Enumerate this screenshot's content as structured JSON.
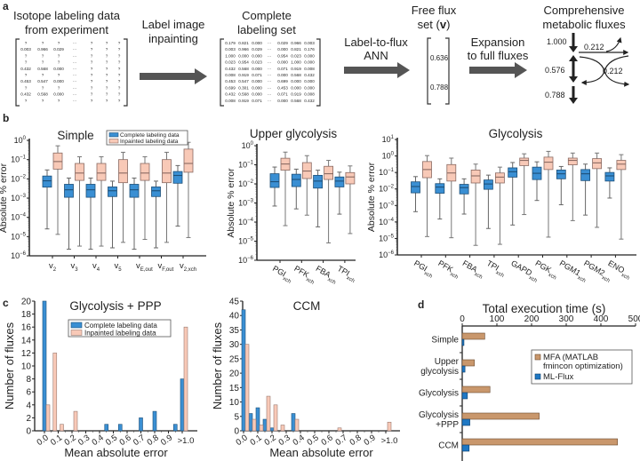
{
  "panel_labels": {
    "a": "a",
    "b": "b",
    "c": "c",
    "d": "d"
  },
  "panel_a": {
    "source_title": [
      "Isotope labeling data",
      "from experiment"
    ],
    "source_matrix": [
      [
        "?",
        "?",
        "?",
        "···",
        "?",
        "?",
        "?"
      ],
      [
        "0.003",
        "0.966",
        "0.029",
        "···",
        "?",
        "?",
        "?"
      ],
      [
        "?",
        "?",
        "?",
        "···",
        "?",
        "?",
        "?"
      ],
      [
        "?",
        "?",
        "?",
        "···",
        "?",
        "?",
        "?"
      ],
      [
        "0.432",
        "0.568",
        "0.000",
        "···",
        "?",
        "?",
        "?"
      ],
      [
        "?",
        "?",
        "?",
        "···",
        "?",
        "?",
        "?"
      ],
      [
        "0.453",
        "0.547",
        "0.000",
        "···",
        "?",
        "?",
        "?"
      ],
      [
        "?",
        "?",
        "?",
        "···",
        "?",
        "?",
        "?"
      ],
      [
        "0.432",
        "0.568",
        "0.000",
        "···",
        "?",
        "?",
        "?"
      ],
      [
        "?",
        "?",
        "?",
        "···",
        "?",
        "?",
        "?"
      ]
    ],
    "step1": [
      "Label image",
      "inpainting"
    ],
    "complete_title": [
      "Complete",
      "labeling set"
    ],
    "complete_matrix": [
      [
        "0.179",
        "0.821",
        "0.000",
        "···",
        "0.029",
        "0.966",
        "0.003"
      ],
      [
        "0.003",
        "0.966",
        "0.029",
        "···",
        "0.000",
        "0.821",
        "0.176"
      ],
      [
        "1.000",
        "0.000",
        "0.000",
        "···",
        "0.954",
        "0.023",
        "0.000"
      ],
      [
        "0.023",
        "0.954",
        "0.023",
        "···",
        "0.000",
        "1.000",
        "0.000"
      ],
      [
        "0.432",
        "0.568",
        "0.000",
        "···",
        "0.071",
        "0.919",
        "0.008"
      ],
      [
        "0.008",
        "0.919",
        "0.071",
        "···",
        "0.000",
        "0.568",
        "0.432"
      ],
      [
        "0.453",
        "0.547",
        "0.000",
        "···",
        "0.699",
        "0.000",
        "0.000"
      ],
      [
        "0.699",
        "0.301",
        "0.000",
        "···",
        "0.453",
        "0.000",
        "0.000"
      ],
      [
        "0.432",
        "0.568",
        "0.000",
        "···",
        "0.071",
        "0.919",
        "0.008"
      ],
      [
        "0.008",
        "0.919",
        "0.071",
        "···",
        "0.000",
        "0.568",
        "0.432"
      ]
    ],
    "step2": [
      "Label-to-flux",
      "ANN"
    ],
    "free_flux_title": {
      "line1": "Free flux",
      "prefix": "set (",
      "symbol": "v",
      "suffix": ")"
    },
    "free_flux_values": [
      "0.636",
      "0.788"
    ],
    "step3": [
      "Expansion",
      "to full fluxes"
    ],
    "full_title": [
      "Comprehensive",
      "metabolic fluxes"
    ],
    "full_flux_values": {
      "top": "1.000",
      "branch_out": "0.212",
      "middle": "0.576",
      "exchange": "0.212",
      "bottom": "0.788"
    },
    "arrow_color": "#555555"
  },
  "colors": {
    "complete": "#3a8fd3",
    "inpainted": "#f8c9b7",
    "mfa": "#c9976c",
    "mlflux": "#1f78c4"
  },
  "chart_data": [
    {
      "type": "box",
      "panel": "b",
      "title": "Simple",
      "ylabel": "Absolute % error",
      "yscale": "log",
      "ylim": [
        1e-06,
        1
      ],
      "yticks": [
        1e-06,
        1e-05,
        0.0001,
        0.001,
        0.01,
        0.1,
        1
      ],
      "legend": "top-right",
      "categories": [
        {
          "base": "v",
          "sub": "2"
        },
        {
          "base": "v",
          "sub": "3"
        },
        {
          "base": "v",
          "sub": "4"
        },
        {
          "base": "v",
          "sub": "5"
        },
        {
          "base": "v",
          "sub": "E,out"
        },
        {
          "base": "v",
          "sub": "F,out"
        },
        {
          "base": "v",
          "sub": "2,xch"
        }
      ],
      "box_format": [
        "whisker_low",
        "q1",
        "median",
        "q3",
        "whisker_high"
      ],
      "series": [
        {
          "name": "Complete labeling data",
          "boxes": [
            [
              2.5e-05,
              0.0037,
              0.0079,
              0.014,
              0.029
            ],
            [
              2.2e-06,
              0.0011,
              0.0027,
              0.0052,
              0.011
            ],
            [
              2.2e-06,
              0.0011,
              0.0027,
              0.0052,
              0.011
            ],
            [
              2.6e-06,
              0.0012,
              0.0024,
              0.0038,
              0.0076
            ],
            [
              2.2e-06,
              0.0011,
              0.0027,
              0.0052,
              0.011
            ],
            [
              2.6e-06,
              0.0012,
              0.0024,
              0.0038,
              0.0076
            ],
            [
              3.5e-05,
              0.0059,
              0.015,
              0.024,
              0.049
            ]
          ]
        },
        {
          "name": "Inpainted labeling data",
          "boxes": [
            [
              1.3e-05,
              0.032,
              0.079,
              0.22,
              0.52
            ],
            [
              3.2e-06,
              0.0083,
              0.02,
              0.063,
              0.14
            ],
            [
              3.2e-06,
              0.0083,
              0.02,
              0.063,
              0.14
            ],
            [
              5e-06,
              0.0063,
              0.02,
              0.1,
              0.24
            ],
            [
              7.1e-06,
              0.0083,
              0.02,
              0.063,
              0.14
            ],
            [
              5e-06,
              0.0063,
              0.02,
              0.1,
              0.24
            ],
            [
              8.9e-06,
              0.022,
              0.063,
              0.35,
              0.79
            ]
          ]
        }
      ]
    },
    {
      "type": "box",
      "panel": "b",
      "title": "Upper glycolysis",
      "ylabel": "Absolute % error",
      "yscale": "log",
      "ylim": [
        1e-06,
        1
      ],
      "yticks": [
        1e-06,
        1e-05,
        0.0001,
        0.001,
        0.01,
        0.1,
        1
      ],
      "categories": [
        {
          "base": "PGI",
          "sub": "xch"
        },
        {
          "base": "PFK",
          "sub": "xch"
        },
        {
          "base": "FBA",
          "sub": "xch"
        },
        {
          "base": "TPI",
          "sub": "xch"
        }
      ],
      "series": [
        {
          "name": "Complete labeling data",
          "boxes": [
            [
              0.00069,
              0.0065,
              0.013,
              0.034,
              0.076
            ],
            [
              0.00049,
              0.0072,
              0.017,
              0.032,
              0.059
            ],
            [
              5.6e-05,
              0.006,
              0.014,
              0.028,
              0.052
            ],
            [
              0.00026,
              0.0069,
              0.014,
              0.023,
              0.041
            ]
          ]
        },
        {
          "name": "Inpainted labeling data",
          "boxes": [
            [
              6.5e-05,
              0.052,
              0.11,
              0.22,
              0.46
            ],
            [
              0.00023,
              0.019,
              0.047,
              0.13,
              0.3
            ],
            [
              8.1e-06,
              0.017,
              0.034,
              0.083,
              0.17
            ],
            [
              2.5e-05,
              0.01,
              0.023,
              0.039,
              0.087
            ]
          ]
        }
      ]
    },
    {
      "type": "box",
      "panel": "b",
      "title": "Glycolysis",
      "ylabel": "Absolute % error",
      "yscale": "log",
      "ylim": [
        1e-06,
        10
      ],
      "yticks": [
        1e-06,
        1e-05,
        0.0001,
        0.001,
        0.01,
        0.1,
        1,
        10
      ],
      "categories": [
        {
          "base": "PGI",
          "sub": "xch"
        },
        {
          "base": "PFK",
          "sub": "xch"
        },
        {
          "base": "FBA",
          "sub": "xch"
        },
        {
          "base": "TPI",
          "sub": "xch"
        },
        {
          "base": "GAPD",
          "sub": "xch"
        },
        {
          "base": "PGK",
          "sub": "xch"
        },
        {
          "base": "PGM1",
          "sub": "xch"
        },
        {
          "base": "PGM2",
          "sub": "xch"
        },
        {
          "base": "ENO",
          "sub": "xch"
        }
      ],
      "series": [
        {
          "name": "Complete labeling data",
          "boxes": [
            [
              0.00042,
              0.0058,
              0.014,
              0.027,
              0.056
            ],
            [
              0.00015,
              0.0055,
              0.013,
              0.021,
              0.041
            ],
            [
              0.0003,
              0.005,
              0.012,
              0.019,
              0.041
            ],
            [
              4e-05,
              0.0095,
              0.02,
              0.035,
              0.069
            ],
            [
              6.5e-05,
              0.052,
              0.11,
              0.19,
              0.4
            ],
            [
              0.002,
              0.037,
              0.089,
              0.21,
              0.44
            ],
            [
              0.0011,
              0.041,
              0.083,
              0.14,
              0.23
            ],
            [
              0.00026,
              0.032,
              0.083,
              0.15,
              0.32
            ],
            [
              0.0028,
              0.03,
              0.062,
              0.1,
              0.19
            ]
          ]
        },
        {
          "name": "Inpainted labeling data",
          "boxes": [
            [
              1.3e-05,
              0.048,
              0.15,
              0.46,
              1.05
            ],
            [
              1.1e-05,
              0.03,
              0.093,
              0.3,
              0.74
            ],
            [
              3.8e-06,
              0.023,
              0.062,
              0.14,
              0.32
            ],
            [
              4.4e-06,
              0.023,
              0.052,
              0.093,
              0.21
            ],
            [
              0.00028,
              0.26,
              0.54,
              0.74,
              1.35
            ],
            [
              1.2e-05,
              0.15,
              0.42,
              0.85,
              1.9
            ],
            [
              0.00012,
              0.29,
              0.54,
              0.74,
              1.5
            ],
            [
              4.7e-05,
              0.17,
              0.38,
              0.69,
              1.5
            ],
            [
              9.1e-06,
              0.15,
              0.32,
              0.54,
              1.2
            ]
          ]
        }
      ]
    },
    {
      "type": "bar",
      "panel": "c",
      "title": "Glycolysis + PPP",
      "xlabel": "Mean absolute error",
      "ylabel": "Number of fluxes",
      "ylim": [
        0,
        20
      ],
      "yticks": [
        0,
        2,
        4,
        6,
        8,
        10,
        12,
        14,
        16,
        18,
        20
      ],
      "xtick_labels": [
        "0.0",
        "0.1",
        "0.2",
        "0.3",
        "0.4",
        "0.5",
        "0.6",
        "0.7",
        "0.8",
        "0.9",
        ">1.0"
      ],
      "bin_width": 0.05,
      "legend": "top-center",
      "series": [
        {
          "name": "Complete labeling data",
          "bars": [
            {
              "bin": 0.0,
              "count": 20
            },
            {
              "bin": 0.45,
              "count": 1
            },
            {
              "bin": 0.55,
              "count": 1
            },
            {
              "bin": 0.7,
              "count": 2
            },
            {
              "bin": 0.8,
              "count": 3
            },
            {
              "bin": 0.95,
              "count": 1
            },
            {
              "bin": ">1.0",
              "count": 8
            }
          ]
        },
        {
          "name": "Inpainted labeling data",
          "bars": [
            {
              "bin": 0.0,
              "count": 4
            },
            {
              "bin": 0.05,
              "count": 12
            },
            {
              "bin": 0.1,
              "count": 1
            },
            {
              "bin": 0.2,
              "count": 3
            },
            {
              "bin": ">1.0",
              "count": 16
            }
          ]
        }
      ]
    },
    {
      "type": "bar",
      "panel": "c",
      "title": "CCM",
      "xlabel": "Mean absolute error",
      "ylabel": "Number of fluxes",
      "ylim": [
        0,
        45
      ],
      "yticks": [
        0,
        5,
        10,
        15,
        20,
        25,
        30,
        35,
        40,
        45
      ],
      "xtick_labels": [
        "0.0",
        "0.1",
        "0.2",
        "0.3",
        "0.4",
        "0.5",
        "0.6",
        "0.7",
        "0.8",
        "0.9",
        ">1.0"
      ],
      "bin_width": 0.05,
      "series": [
        {
          "name": "Complete labeling data",
          "bars": [
            {
              "bin": 0.0,
              "count": 42
            },
            {
              "bin": 0.05,
              "count": 6
            },
            {
              "bin": 0.1,
              "count": 8
            },
            {
              "bin": 0.15,
              "count": 4
            },
            {
              "bin": 0.2,
              "count": 1
            },
            {
              "bin": 0.35,
              "count": 6
            }
          ]
        },
        {
          "name": "Inpainted labeling data",
          "bars": [
            {
              "bin": 0.0,
              "count": 30
            },
            {
              "bin": 0.05,
              "count": 4
            },
            {
              "bin": 0.1,
              "count": 2
            },
            {
              "bin": 0.15,
              "count": 12
            },
            {
              "bin": 0.2,
              "count": 9
            },
            {
              "bin": 0.25,
              "count": 2
            },
            {
              "bin": 0.35,
              "count": 4
            },
            {
              "bin": 0.65,
              "count": 1
            },
            {
              "bin": ">1.0",
              "count": 3
            }
          ]
        }
      ]
    },
    {
      "type": "bar",
      "orientation": "horizontal",
      "panel": "d",
      "title": "Total execution time (s)",
      "xlim": [
        0,
        500
      ],
      "xticks": [
        0,
        100,
        200,
        300,
        400,
        500
      ],
      "legend": "right",
      "categories": [
        [
          "Simple"
        ],
        [
          "Upper",
          "glycolysis"
        ],
        [
          "Glycolysis"
        ],
        [
          "Glycolysis",
          "+PPP"
        ],
        [
          "CCM"
        ]
      ],
      "series": [
        {
          "name": [
            "MFA (MATLAB",
            "fmincon optimization)"
          ],
          "values": [
            65,
            35,
            80,
            222,
            448
          ]
        },
        {
          "name": [
            "ML-Flux"
          ],
          "values": [
            5,
            8,
            15,
            22,
            20
          ]
        }
      ]
    }
  ]
}
